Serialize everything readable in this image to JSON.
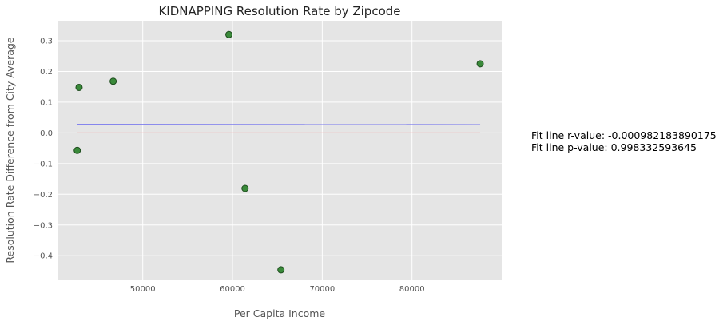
{
  "chart_data": {
    "type": "scatter",
    "title": "KIDNAPPING Resolution Rate by Zipcode",
    "xlabel": "Per Capita Income",
    "ylabel": "Resolution Rate Difference from City Average",
    "xlim": [
      40500,
      90000
    ],
    "ylim": [
      -0.48,
      0.365
    ],
    "x_ticks": [
      50000,
      60000,
      70000,
      80000
    ],
    "y_ticks": [
      -0.4,
      -0.3,
      -0.2,
      -0.1,
      0.0,
      0.1,
      0.2,
      0.3
    ],
    "y_tick_labels": [
      "−0.4",
      "−0.3",
      "−0.2",
      "−0.1",
      "0.0",
      "0.1",
      "0.2",
      "0.3"
    ],
    "grid": true,
    "points": [
      {
        "x": 42700,
        "y": -0.057
      },
      {
        "x": 42900,
        "y": 0.148
      },
      {
        "x": 46700,
        "y": 0.168
      },
      {
        "x": 59600,
        "y": 0.32
      },
      {
        "x": 61400,
        "y": -0.181
      },
      {
        "x": 65400,
        "y": -0.446
      },
      {
        "x": 87600,
        "y": 0.225
      }
    ],
    "fit_line": {
      "x": [
        42700,
        87600
      ],
      "y": [
        0.028,
        0.027
      ]
    },
    "zero_line": {
      "x": [
        42700,
        87600
      ],
      "y": [
        0.0,
        0.0
      ]
    },
    "colors": {
      "background": "#e5e5e5",
      "grid": "#ffffff",
      "point_fill": "#3a8a3a",
      "point_edge": "#1e4d1e",
      "fit_line": "#7777ee",
      "zero_line": "#ee7777"
    },
    "annotations": [
      "Fit line r-value: -0.000982183890175",
      "Fit line p-value: 0.998332593645"
    ]
  }
}
